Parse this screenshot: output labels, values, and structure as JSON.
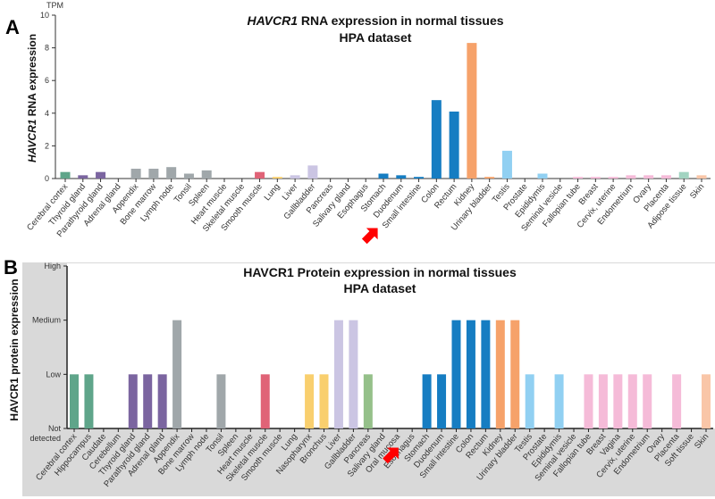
{
  "chart_data": [
    {
      "type": "bar",
      "panel_label": "A",
      "title_gene": "HAVCR1",
      "title_rest": " RNA expression in normal tissues",
      "subtitle": "HPA dataset",
      "ylabel_gene": "HAVCR1",
      "ylabel_rest": " RNA expression",
      "yunit": "TPM",
      "ylim": [
        0,
        10
      ],
      "yticks": [
        "0",
        "2",
        "4",
        "6",
        "8",
        "10"
      ],
      "categories": [
        "Cerebral cortex",
        "Thyroid gland",
        "Parathyroid gland",
        "Adrenal gland",
        "Appendix",
        "Bone marrow",
        "Lymph node",
        "Tonsil",
        "Spleen",
        "Heart muscle",
        "Skeletal muscle",
        "Smooth muscle",
        "Lung",
        "Liver",
        "Gallbladder",
        "Pancreas",
        "Salivary gland",
        "Esophagus",
        "Stomach",
        "Duodenum",
        "Small intestine",
        "Colon",
        "Rectum",
        "Kidney",
        "Urinary bladder",
        "Testis",
        "Prostate",
        "Epididymis",
        "Seminal vesicle",
        "Fallopian tube",
        "Breast",
        "Cervix, uterine",
        "Endometrium",
        "Ovary",
        "Placenta",
        "Adipose tissue",
        "Skin"
      ],
      "values": [
        0.4,
        0.2,
        0.4,
        0,
        0.6,
        0.6,
        0.7,
        0.3,
        0.5,
        0,
        0,
        0.4,
        0.1,
        0.2,
        0.8,
        0,
        0,
        0,
        0.3,
        0.2,
        0.1,
        4.8,
        4.1,
        8.3,
        0.1,
        1.7,
        0,
        0.3,
        0,
        0.1,
        0.1,
        0.1,
        0.2,
        0.2,
        0.2,
        0.4,
        0.2
      ],
      "colors": [
        "#5fa58a",
        "#7b65a0",
        "#7b65a0",
        "#7b65a0",
        "#a0a7aa",
        "#a0a7aa",
        "#a0a7aa",
        "#a0a7aa",
        "#a0a7aa",
        "#e06377",
        "#e06377",
        "#e06377",
        "#f9cf6e",
        "#cbc5e3",
        "#cbc5e3",
        "#95c08a",
        "#95c08a",
        "#167dc2",
        "#167dc2",
        "#167dc2",
        "#167dc2",
        "#167dc2",
        "#167dc2",
        "#f6a26a",
        "#f6a26a",
        "#91d0f2",
        "#91d0f2",
        "#91d0f2",
        "#91d0f2",
        "#f5bbd8",
        "#f5bbd8",
        "#f5bbd8",
        "#f5bbd8",
        "#f5bbd8",
        "#f5bbd8",
        "#a2d4c1",
        "#f9c6a8"
      ],
      "annotation": "red arrow pointing to Esophagus / Stomach",
      "annotation_index": 17.5
    },
    {
      "type": "bar",
      "panel_label": "B",
      "title": "HAVCR1 Protein expression in normal tissues",
      "subtitle": "HPA dataset",
      "ylabel": "HAVCR1 protein expression",
      "levels": [
        "Not detected",
        "Low",
        "Medium",
        "High"
      ],
      "level_lines": [
        [
          "Not",
          "detected"
        ],
        [
          "Low"
        ],
        [
          "Medium"
        ],
        [
          "High"
        ]
      ],
      "categories": [
        "Cerebral cortex",
        "Hippocampus",
        "Caudate",
        "Cerebellum",
        "Thyroid gland",
        "Parathyroid gland",
        "Adrenal gland",
        "Appendix",
        "Bone marrow",
        "Lymph node",
        "Tonsil",
        "Spleen",
        "Heart muscle",
        "Skeletal muscle",
        "Smooth muscle",
        "Lung",
        "Nasopharynx",
        "Bronchus",
        "Liver",
        "Gallbladder",
        "Pancreas",
        "Salivary gland",
        "Oral mucosa",
        "Esophagus",
        "Stomach",
        "Duodenum",
        "Small intestine",
        "Colon",
        "Rectum",
        "Kidney",
        "Urinary bladder",
        "Testis",
        "Prostate",
        "Epididymis",
        "Seminal vesicle",
        "Fallopian tube",
        "Breast",
        "Vagina",
        "Cervix, uterine",
        "Endometrium",
        "Ovary",
        "Placenta",
        "Soft tissue",
        "Skin"
      ],
      "values": [
        1,
        1,
        0,
        0,
        1,
        1,
        1,
        2,
        0,
        0,
        1,
        0,
        0,
        1,
        0,
        0,
        1,
        1,
        2,
        2,
        1,
        0,
        0,
        0,
        1,
        1,
        2,
        2,
        2,
        2,
        2,
        1,
        0,
        1,
        0,
        1,
        1,
        1,
        1,
        1,
        0,
        1,
        0,
        1
      ],
      "colors": [
        "#5fa58a",
        "#5fa58a",
        "#5fa58a",
        "#5fa58a",
        "#7b65a0",
        "#7b65a0",
        "#7b65a0",
        "#a0a7aa",
        "#a0a7aa",
        "#a0a7aa",
        "#a0a7aa",
        "#a0a7aa",
        "#e06377",
        "#e06377",
        "#e06377",
        "#f9cf6e",
        "#f9cf6e",
        "#f9cf6e",
        "#cbc5e3",
        "#cbc5e3",
        "#95c08a",
        "#95c08a",
        "#95c08a",
        "#167dc2",
        "#167dc2",
        "#167dc2",
        "#167dc2",
        "#167dc2",
        "#167dc2",
        "#f6a26a",
        "#f6a26a",
        "#91d0f2",
        "#91d0f2",
        "#91d0f2",
        "#91d0f2",
        "#f5bbd8",
        "#f5bbd8",
        "#f5bbd8",
        "#f5bbd8",
        "#f5bbd8",
        "#f5bbd8",
        "#f5bbd8",
        "#f9c6a8",
        "#f9c6a8"
      ],
      "annotation": "red arrow pointing to Esophagus / Stomach",
      "annotation_index": 23.5
    }
  ]
}
